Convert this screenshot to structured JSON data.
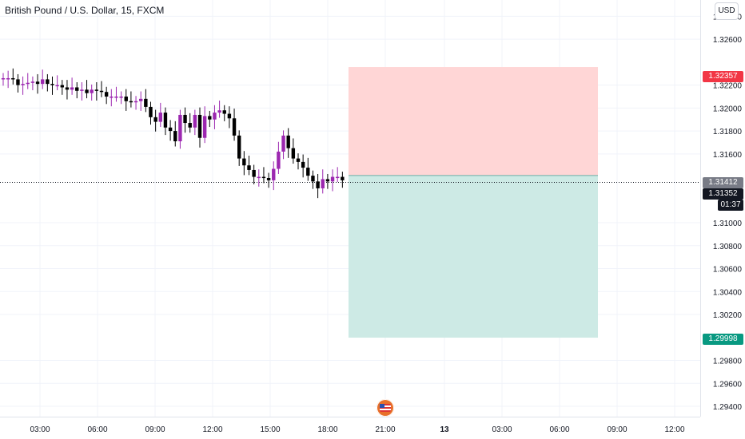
{
  "header": {
    "title": "British Pound / U.S. Dollar, 15, FXCM"
  },
  "currency_button": {
    "label": "USD"
  },
  "price_axis": {
    "labels": [
      "1.32800",
      "1.32600",
      "1.32200",
      "1.32000",
      "1.31800",
      "1.31600",
      "1.31000",
      "1.30800",
      "1.30600",
      "1.30400",
      "1.30200",
      "1.29800",
      "1.29600",
      "1.29400"
    ]
  },
  "time_axis": {
    "labels": [
      "03:00",
      "06:00",
      "09:00",
      "12:00",
      "15:00",
      "18:00",
      "21:00",
      "13",
      "03:00",
      "06:00",
      "09:00",
      "12:00"
    ]
  },
  "tags": {
    "stop": "1.32357",
    "entry": "1.31412",
    "last": "1.31352",
    "countdown": "01:37",
    "target": "1.29998"
  },
  "colors": {
    "up_candle": "#9c27b0",
    "down_candle": "#000000",
    "stop_zone": "#ffd6d6",
    "target_zone": "#cdeae5",
    "stop_tag": "#f23645",
    "target_tag": "#089981"
  },
  "icons": {
    "logo": "us-flag-badge-icon"
  },
  "chart_data": {
    "type": "candlestick",
    "symbol": "GBPUSD",
    "ylim": [
      1.293,
      1.329
    ],
    "candles_close": [
      1.3226,
      1.3226,
      1.3225,
      1.322,
      1.3221,
      1.3222,
      1.3223,
      1.3221,
      1.3225,
      1.3221,
      1.322,
      1.322,
      1.3218,
      1.3216,
      1.3218,
      1.3215,
      1.3216,
      1.3213,
      1.3216,
      1.3215,
      1.3214,
      1.321,
      1.321,
      1.321,
      1.321,
      1.3206,
      1.3205,
      1.3206,
      1.3208,
      1.3201,
      1.3192,
      1.3188,
      1.3196,
      1.3183,
      1.318,
      1.3171,
      1.3194,
      1.3187,
      1.3183,
      1.3194,
      1.3174,
      1.3193,
      1.319,
      1.3196,
      1.3198,
      1.3195,
      1.3191,
      1.3176,
      1.3156,
      1.315,
      1.3146,
      1.314,
      1.314,
      1.3139,
      1.3137,
      1.3147,
      1.3162,
      1.3176,
      1.3165,
      1.3156,
      1.3153,
      1.3148,
      1.3141,
      1.3136,
      1.313,
      1.3138,
      1.3136,
      1.314,
      1.314,
      1.3137
    ],
    "position": {
      "stop": 1.32357,
      "entry": 1.31412,
      "target": 1.29998
    },
    "last_price": 1.31352
  }
}
